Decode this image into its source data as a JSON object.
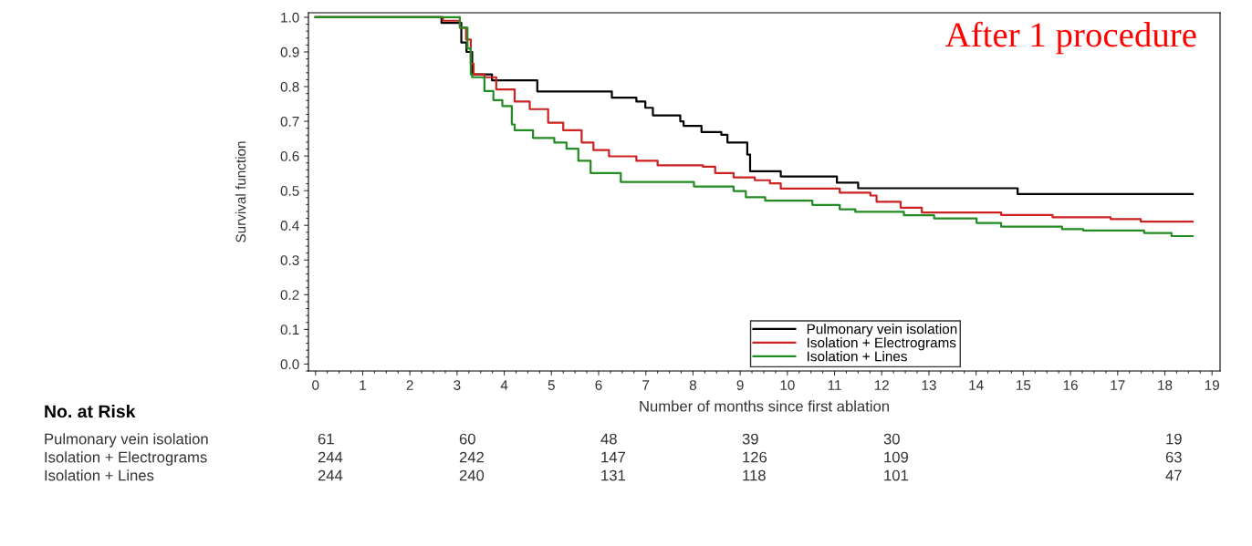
{
  "chart_data": {
    "type": "step",
    "xlabel": "Number of months since first ablation",
    "ylabel": "Survival function",
    "xlim": [
      -0.15,
      19.17
    ],
    "ylim": [
      -0.02,
      1.013
    ],
    "xticks": [
      0,
      1,
      2,
      3,
      4,
      5,
      6,
      7,
      8,
      9,
      10,
      11,
      12,
      13,
      14,
      15,
      16,
      17,
      18,
      19
    ],
    "yticks": [
      {
        "value": 0,
        "label": "0.0"
      },
      0.1,
      0.2,
      0.3,
      0.4,
      0.5,
      0.6,
      0.7,
      0.8,
      0.9,
      {
        "value": 1,
        "label": "1.0"
      }
    ],
    "grid": false,
    "legend": "bottom",
    "line_style": "solid",
    "marker": "none",
    "series": [
      {
        "name": "Pulmonary vein isolation",
        "color": "#000000",
        "x": [
          0,
          2.67,
          3.09,
          3.2,
          3.32,
          3.74,
          4.7,
          6.28,
          6.8,
          6.99,
          7.15,
          7.73,
          7.8,
          8.18,
          8.6,
          8.73,
          9.15,
          9.21,
          9.86,
          11.05,
          11.5,
          14.88,
          18.59
        ],
        "values": [
          1.0,
          0.984,
          0.927,
          0.9,
          0.835,
          0.818,
          0.786,
          0.768,
          0.757,
          0.739,
          0.717,
          0.7,
          0.687,
          0.669,
          0.661,
          0.639,
          0.604,
          0.556,
          0.541,
          0.523,
          0.507,
          0.49,
          0.49
        ]
      },
      {
        "name": "Isolation + Electrograms",
        "color": "#cc2222",
        "x": [
          0,
          2.7,
          3.06,
          3.19,
          3.29,
          3.35,
          3.58,
          3.83,
          4.22,
          4.54,
          4.93,
          5.25,
          5.64,
          5.89,
          6.22,
          6.8,
          7.25,
          8.21,
          8.47,
          8.86,
          9.31,
          9.63,
          9.86,
          11.11,
          11.76,
          11.89,
          12.4,
          12.85,
          14.53,
          15.62,
          16.85,
          17.49,
          18.59
        ],
        "values": [
          1.0,
          0.99,
          0.97,
          0.936,
          0.866,
          0.835,
          0.827,
          0.792,
          0.757,
          0.735,
          0.696,
          0.674,
          0.639,
          0.617,
          0.599,
          0.586,
          0.573,
          0.569,
          0.551,
          0.538,
          0.53,
          0.521,
          0.506,
          0.494,
          0.486,
          0.468,
          0.451,
          0.437,
          0.43,
          0.423,
          0.418,
          0.411,
          0.411
        ]
      },
      {
        "name": "Isolation + Lines",
        "color": "#228b22",
        "x": [
          0,
          3.06,
          3.22,
          3.29,
          3.32,
          3.58,
          3.77,
          3.96,
          4.16,
          4.22,
          4.61,
          5.06,
          5.32,
          5.57,
          5.83,
          6.47,
          8.02,
          8.86,
          9.12,
          9.53,
          10.53,
          11.11,
          11.44,
          12.47,
          13.11,
          14.01,
          14.53,
          15.82,
          16.27,
          17.56,
          18.14,
          18.59
        ],
        "values": [
          1.0,
          0.97,
          0.91,
          0.835,
          0.827,
          0.787,
          0.761,
          0.744,
          0.691,
          0.674,
          0.652,
          0.639,
          0.621,
          0.586,
          0.551,
          0.525,
          0.512,
          0.499,
          0.481,
          0.471,
          0.459,
          0.446,
          0.439,
          0.429,
          0.42,
          0.407,
          0.396,
          0.389,
          0.385,
          0.378,
          0.369,
          0.369
        ]
      }
    ],
    "annotations": [
      "After 1 procedure",
      "No. at Risk",
      "Pulmonary vein isolation",
      [
        "61",
        "60",
        "48",
        "39",
        "30",
        "19"
      ],
      "Isolation + Electrograms",
      [
        "244",
        "242",
        "147",
        "126",
        "109",
        "63"
      ],
      "Isolation + Lines",
      [
        "244",
        "240",
        "131",
        "118",
        "101",
        "47"
      ]
    ]
  }
}
